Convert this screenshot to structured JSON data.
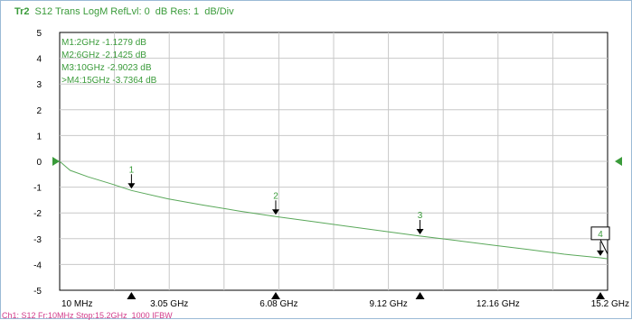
{
  "header": {
    "trace_id": "Tr2",
    "text": "S12 Trans LogM RefLvl: 0  dB Res: 1  dB/Div"
  },
  "footer": {
    "text": "Ch1: S12 Fr:10MHz Stop:15.2GHz  1000 IFBW"
  },
  "colors": {
    "trace": "#5aa85a",
    "grid": "#c8c8c8",
    "axis": "#000000",
    "marker_text": "#3a9b3a",
    "ref_arrow": "#3a9b3a",
    "footer": "#d23a8a"
  },
  "chart_data": {
    "type": "line",
    "title": "",
    "xlabel": "",
    "ylabel": "",
    "xlim": [
      0.01,
      15.2
    ],
    "ylim": [
      -5,
      5
    ],
    "grid": true,
    "y_ticks": [
      "5",
      "4",
      "3",
      "2",
      "1",
      "0",
      "-1",
      "-2",
      "-3",
      "-4",
      "-5"
    ],
    "x_tick_labels": [
      "10 MHz",
      "3.05 GHz",
      "6.08 GHz",
      "9.12 GHz",
      "12.16 GHz",
      "15.2 GHz"
    ],
    "reference_level": 0,
    "series": [
      {
        "x": [
          0.01,
          0.3,
          0.8,
          1.5,
          2.0,
          3.0,
          4.0,
          5.0,
          6.0,
          7.0,
          8.0,
          9.0,
          10.0,
          11.0,
          12.0,
          13.0,
          14.0,
          15.0,
          15.2
        ],
        "y": [
          0,
          -0.35,
          -0.6,
          -0.9,
          -1.13,
          -1.45,
          -1.7,
          -1.93,
          -2.14,
          -2.33,
          -2.52,
          -2.71,
          -2.9,
          -3.07,
          -3.25,
          -3.42,
          -3.6,
          -3.74,
          -3.78
        ]
      }
    ],
    "markers": [
      {
        "id": "1",
        "x": 2.0,
        "y": -1.1279,
        "readout": "M1:2GHz  -1.1279  dB",
        "active": false
      },
      {
        "id": "2",
        "x": 6.0,
        "y": -2.1425,
        "readout": "M2:6GHz  -2.1425  dB",
        "active": false
      },
      {
        "id": "3",
        "x": 10.0,
        "y": -2.9023,
        "readout": "M3:10GHz  -2.9023  dB",
        "active": false
      },
      {
        "id": "4",
        "x": 15.0,
        "y": -3.7364,
        "readout": ">M4:15GHz  -3.7364  dB",
        "active": true
      }
    ],
    "bottom_markers_x": [
      2.0,
      6.0,
      10.0,
      15.0
    ]
  }
}
